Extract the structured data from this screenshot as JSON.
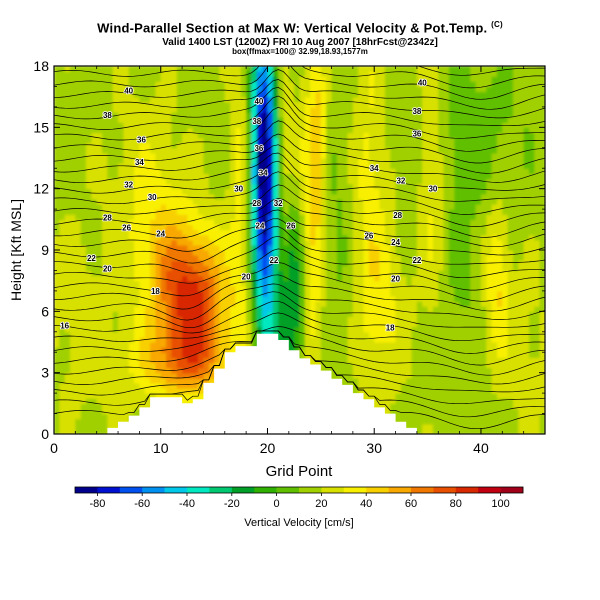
{
  "header": {
    "title": "Wind-Parallel Section at Max W: Vertical Velocity & Pot.Temp.",
    "title_mark": "(C)",
    "valid": "Valid 1400 LST (1200Z) FRI 10 Aug 2007 [18hrFcst@2342z]",
    "box": "box(ffmax=100@ 32.99,18.93,1577m"
  },
  "chart_data": {
    "type": "heatmap",
    "title": "Wind-Parallel Section at Max W: Vertical Velocity & Pot.Temp.",
    "xlabel": "Grid Point",
    "ylabel": "Height [Kft MSL]",
    "xlim": [
      0,
      46
    ],
    "ylim": [
      0,
      18
    ],
    "x_ticks": [
      "0",
      "10",
      "20",
      "30",
      "40"
    ],
    "x_tick_values": [
      0,
      10,
      20,
      30,
      40
    ],
    "y_ticks": [
      "0",
      "3",
      "6",
      "9",
      "12",
      "15",
      "18"
    ],
    "y_tick_values": [
      0,
      3,
      6,
      9,
      12,
      15,
      18
    ],
    "colorbar": {
      "label": "Vertical Velocity [cm/s]",
      "ticks": [
        "-80",
        "-60",
        "-40",
        "-20",
        "0",
        "20",
        "40",
        "60",
        "80",
        "100"
      ],
      "tick_values": [
        -80,
        -60,
        -40,
        -20,
        0,
        20,
        40,
        60,
        80,
        100
      ],
      "range": [
        -90,
        110
      ],
      "colors": [
        "#00008c",
        "#0010d0",
        "#0050f0",
        "#0090f0",
        "#00c8e8",
        "#00e8c0",
        "#00c870",
        "#00a028",
        "#30b000",
        "#60c000",
        "#a0d000",
        "#d8e000",
        "#f8f000",
        "#f8d000",
        "#f8a800",
        "#f07800",
        "#e85000",
        "#d82800",
        "#c00010",
        "#a00018"
      ]
    },
    "terrain": [
      [
        0,
        0
      ],
      [
        5,
        0
      ],
      [
        5,
        0.3
      ],
      [
        6,
        0.3
      ],
      [
        6,
        0.6
      ],
      [
        7,
        0.6
      ],
      [
        7,
        0.9
      ],
      [
        8,
        0.9
      ],
      [
        8,
        1.3
      ],
      [
        9,
        1.3
      ],
      [
        9,
        1.8
      ],
      [
        12,
        1.8
      ],
      [
        12,
        1.5
      ],
      [
        13,
        1.5
      ],
      [
        13,
        1.7
      ],
      [
        14,
        1.7
      ],
      [
        14,
        2.5
      ],
      [
        15,
        2.5
      ],
      [
        15,
        3.2
      ],
      [
        16,
        3.2
      ],
      [
        16,
        4.0
      ],
      [
        17,
        4.0
      ],
      [
        17,
        4.3
      ],
      [
        19,
        4.3
      ],
      [
        19,
        4.9
      ],
      [
        21,
        4.9
      ],
      [
        21,
        4.6
      ],
      [
        22,
        4.6
      ],
      [
        22,
        4.1
      ],
      [
        23,
        4.1
      ],
      [
        23,
        3.7
      ],
      [
        24,
        3.7
      ],
      [
        24,
        3.4
      ],
      [
        25,
        3.4
      ],
      [
        25,
        3.1
      ],
      [
        26,
        3.1
      ],
      [
        26,
        2.7
      ],
      [
        27,
        2.7
      ],
      [
        27,
        2.4
      ],
      [
        28,
        2.4
      ],
      [
        28,
        2.0
      ],
      [
        29,
        2.0
      ],
      [
        29,
        1.7
      ],
      [
        30,
        1.7
      ],
      [
        30,
        1.3
      ],
      [
        31,
        1.3
      ],
      [
        31,
        1.0
      ],
      [
        32,
        1.0
      ],
      [
        32,
        0.6
      ],
      [
        33,
        0.6
      ],
      [
        33,
        0.3
      ],
      [
        34,
        0.3
      ],
      [
        34,
        0
      ],
      [
        46,
        0
      ]
    ],
    "w_features": [
      {
        "x": 13.2,
        "y": 6.5,
        "sx": 2.2,
        "sy": 2.3,
        "value": 62
      },
      {
        "x": 12.0,
        "y": 3.5,
        "sx": 3.0,
        "sy": 1.3,
        "value": 35
      },
      {
        "x": 10.5,
        "y": 8.5,
        "sx": 2.0,
        "sy": 2.5,
        "value": 20
      },
      {
        "x": 8.5,
        "y": 12.0,
        "sx": 2.5,
        "sy": 3.5,
        "value": 12
      },
      {
        "x": 19.5,
        "y": 13.5,
        "sx": 0.8,
        "sy": 5.0,
        "value": -80
      },
      {
        "x": 20.2,
        "y": 10.0,
        "sx": 0.9,
        "sy": 6.5,
        "value": -45
      },
      {
        "x": 22.5,
        "y": 6.5,
        "sx": 0.9,
        "sy": 3.5,
        "value": -42
      },
      {
        "x": 21.5,
        "y": 13.0,
        "sx": 0.6,
        "sy": 5.0,
        "value": 22
      },
      {
        "x": 17.5,
        "y": 12.0,
        "sx": 0.7,
        "sy": 6.0,
        "value": 18
      },
      {
        "x": 24.0,
        "y": 9.0,
        "sx": 0.9,
        "sy": 6.0,
        "value": 28
      },
      {
        "x": 24.8,
        "y": 14.5,
        "sx": 0.6,
        "sy": 3.0,
        "value": 20
      },
      {
        "x": 26.5,
        "y": 10.5,
        "sx": 1.3,
        "sy": 6.0,
        "value": -8
      },
      {
        "x": 29.5,
        "y": 12.0,
        "sx": 1.2,
        "sy": 6.0,
        "value": 18
      },
      {
        "x": 31.0,
        "y": 6.0,
        "sx": 1.5,
        "sy": 3.0,
        "value": 14
      },
      {
        "x": 35.5,
        "y": 13.0,
        "sx": 1.0,
        "sy": 5.0,
        "value": 18
      },
      {
        "x": 41.5,
        "y": 7.5,
        "sx": 0.8,
        "sy": 2.5,
        "value": 24
      },
      {
        "x": 38.0,
        "y": 9.0,
        "sx": 1.5,
        "sy": 5.0,
        "value": -8
      },
      {
        "x": 39.0,
        "y": 15.0,
        "sx": 4.0,
        "sy": 2.5,
        "value": -10
      },
      {
        "x": 2.0,
        "y": 7.0,
        "sx": 2.0,
        "sy": 2.5,
        "value": 8
      },
      {
        "x": 44.0,
        "y": 4.0,
        "sx": 2.0,
        "sy": 3.0,
        "value": 8
      },
      {
        "x": 4.0,
        "y": 3.0,
        "sx": 3.0,
        "sy": 2.0,
        "value": 6
      }
    ],
    "contour_labels": [
      {
        "text": "40",
        "x": 7.0,
        "y": 16.8
      },
      {
        "text": "38",
        "x": 5.0,
        "y": 15.6
      },
      {
        "text": "36",
        "x": 8.2,
        "y": 14.4
      },
      {
        "text": "34",
        "x": 8.0,
        "y": 13.3
      },
      {
        "text": "32",
        "x": 7.0,
        "y": 12.2
      },
      {
        "text": "30",
        "x": 9.2,
        "y": 11.6
      },
      {
        "text": "28",
        "x": 5.0,
        "y": 10.6
      },
      {
        "text": "26",
        "x": 6.8,
        "y": 10.1
      },
      {
        "text": "24",
        "x": 10.0,
        "y": 9.8
      },
      {
        "text": "22",
        "x": 3.5,
        "y": 8.6
      },
      {
        "text": "20",
        "x": 5.0,
        "y": 8.1
      },
      {
        "text": "18",
        "x": 9.5,
        "y": 7.0
      },
      {
        "text": "16",
        "x": 1.0,
        "y": 5.3
      },
      {
        "text": "40",
        "x": 19.2,
        "y": 16.3
      },
      {
        "text": "38",
        "x": 19.0,
        "y": 15.3
      },
      {
        "text": "36",
        "x": 19.2,
        "y": 14.0
      },
      {
        "text": "34",
        "x": 19.6,
        "y": 12.8
      },
      {
        "text": "30",
        "x": 17.3,
        "y": 12.0
      },
      {
        "text": "28",
        "x": 19.0,
        "y": 11.3
      },
      {
        "text": "32",
        "x": 21.0,
        "y": 11.3
      },
      {
        "text": "26",
        "x": 22.2,
        "y": 10.2
      },
      {
        "text": "24",
        "x": 19.3,
        "y": 10.2
      },
      {
        "text": "22",
        "x": 20.6,
        "y": 8.5
      },
      {
        "text": "20",
        "x": 18.0,
        "y": 7.7
      },
      {
        "text": "40",
        "x": 34.5,
        "y": 17.2
      },
      {
        "text": "38",
        "x": 34.0,
        "y": 15.8
      },
      {
        "text": "36",
        "x": 34.0,
        "y": 14.7
      },
      {
        "text": "34",
        "x": 30.0,
        "y": 13.0
      },
      {
        "text": "32",
        "x": 32.5,
        "y": 12.4
      },
      {
        "text": "30",
        "x": 35.5,
        "y": 12.0
      },
      {
        "text": "28",
        "x": 32.2,
        "y": 10.7
      },
      {
        "text": "26",
        "x": 29.5,
        "y": 9.7
      },
      {
        "text": "24",
        "x": 32.0,
        "y": 9.4
      },
      {
        "text": "22",
        "x": 34.0,
        "y": 8.5
      },
      {
        "text": "20",
        "x": 32.0,
        "y": 7.6
      },
      {
        "text": "18",
        "x": 31.5,
        "y": 5.2
      }
    ]
  }
}
